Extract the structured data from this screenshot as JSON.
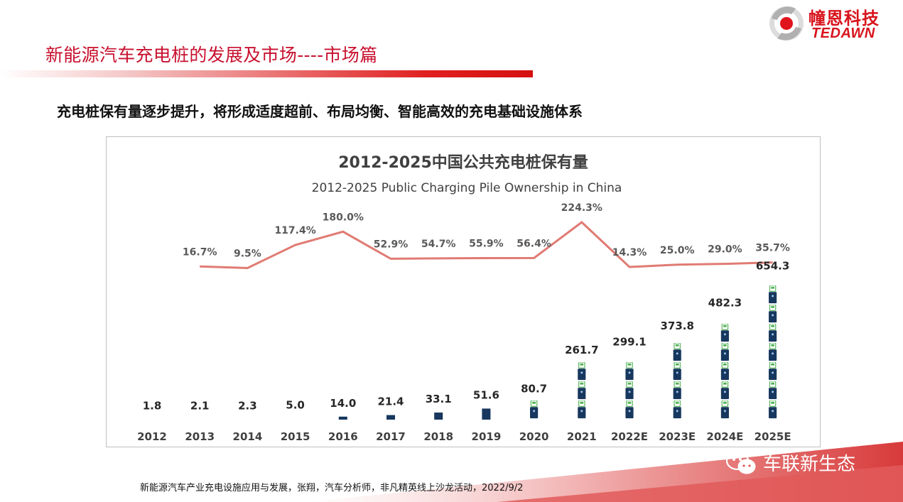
{
  "header": {
    "title": "新能源汽车充电桩的发展及市场----市场篇"
  },
  "logo": {
    "cn": "幢恩科技",
    "en": "TEDAWN"
  },
  "subtitle": "充电桩保有量逐步提升，将形成适度超前、布局均衡、智能高效的充电基础设施体系",
  "source": "新能源汽车产业充电设施应用与发展，张翔，汽车分析师，非凡精英线上沙龙活动，2022/9/2",
  "watermark": {
    "icon": "wechat-icon",
    "text": "车联新生态"
  },
  "colors": {
    "accent": "#c8102e",
    "line": "#e07b73",
    "bar": "#17375e",
    "icon_green": "#4caf50"
  },
  "chart_data": {
    "type": "bar",
    "title": "2012-2025中国公共充电桩保有量",
    "subtitle": "2012-2025 Public Charging Pile Ownership in China",
    "categories": [
      "2012",
      "2013",
      "2014",
      "2015",
      "2016",
      "2017",
      "2018",
      "2019",
      "2020",
      "2021",
      "2022E",
      "2023E",
      "2024E",
      "2025E"
    ],
    "series": [
      {
        "type": "bar",
        "values": [
          1.8,
          2.1,
          2.3,
          5.0,
          14.0,
          21.4,
          33.1,
          51.6,
          80.7,
          261.7,
          299.1,
          373.8,
          482.3,
          654.3
        ],
        "labels": [
          "1.8",
          "2.1",
          "2.3",
          "5.0",
          "14.0",
          "21.4",
          "33.1",
          "51.6",
          "80.7",
          "261.7",
          "299.1",
          "373.8",
          "482.3",
          "654.3"
        ]
      },
      {
        "type": "line",
        "values": [
          null,
          16.7,
          9.5,
          117.4,
          180.0,
          52.9,
          54.7,
          55.9,
          56.4,
          224.3,
          14.3,
          25.0,
          29.0,
          35.7
        ],
        "labels": [
          "",
          "16.7%",
          "9.5%",
          "117.4%",
          "180.0%",
          "52.9%",
          "54.7%",
          "55.9%",
          "56.4%",
          "224.3%",
          "14.3%",
          "25.0%",
          "29.0%",
          "35.7%"
        ]
      }
    ],
    "legend": "none",
    "grid": false
  }
}
